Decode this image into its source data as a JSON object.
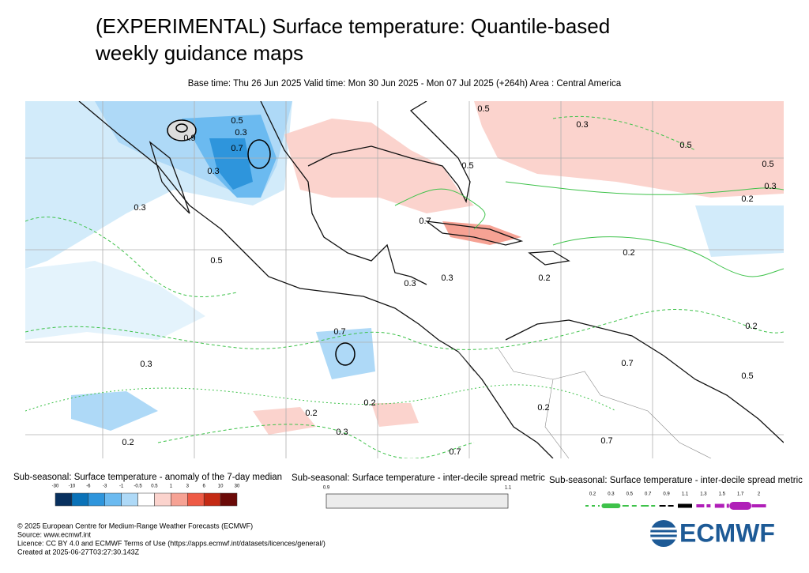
{
  "header": {
    "title_line1": "(EXPERIMENTAL) Surface temperature: Quantile-based",
    "title_line2": "weekly guidance maps",
    "subtitle": "Base time: Thu 26 Jun 2025 Valid time: Mon 30 Jun 2025 - Mon 07 Jul 2025 (+264h) Area : Central America"
  },
  "map": {
    "contour_labels": [
      0.5,
      0.3,
      0.9,
      0.7,
      0.5,
      0.3,
      0.5,
      0.3,
      0.5,
      0.5,
      0.3,
      0.2,
      0.3,
      0.7,
      0.5,
      0.2,
      0.2,
      0.3,
      0.3,
      0.7,
      0.2,
      0.3,
      0.2,
      0.2,
      0.2,
      0.3,
      0.7,
      0.5,
      0.7,
      0.7,
      0.2
    ]
  },
  "legends": [
    {
      "title": "Sub-seasonal: Surface temperature - anomaly of the 7-day median",
      "ticks": [
        -30,
        -10,
        -6,
        -3,
        -1,
        -0.5,
        0.5,
        1,
        3,
        6,
        10,
        30
      ],
      "colors": [
        "#08305e",
        "#0a72b8",
        "#2e95dc",
        "#6bbaf0",
        "#aed9f7",
        "#ffffff",
        "#fbd3cd",
        "#f6a294",
        "#ee5a45",
        "#c42a14",
        "#6b0a08"
      ]
    },
    {
      "title": "Sub-seasonal: Surface temperature - inter-decile spread metric",
      "ticks": [
        0.9,
        1.1
      ],
      "color": "#ececec"
    },
    {
      "title": "Sub-seasonal: Surface temperature - inter-decile spread metric",
      "ticks": [
        0.2,
        0.3,
        0.5,
        0.7,
        0.9,
        1.1,
        1.3,
        1.5,
        1.7,
        2
      ]
    }
  ],
  "footer": {
    "lines": [
      "© 2025 European Centre for Medium-Range Weather Forecasts (ECMWF)",
      "Source: www.ecmwf.int",
      "Licence: CC BY 4.0 and ECMWF Terms of Use (https://apps.ecmwf.int/datasets/licences/general/)",
      "Created at 2025-06-27T03:27:30.143Z"
    ],
    "logo": "ECMWF"
  }
}
